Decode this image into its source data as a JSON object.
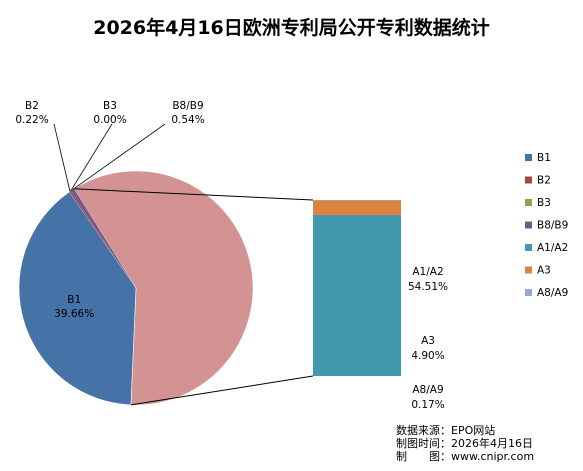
{
  "chart_data": {
    "type": "pie",
    "title": "2026年4月16日欧洲专利局公开专利数据统计",
    "slices": [
      {
        "name": "B1",
        "value": 39.66,
        "label": "39.66%",
        "color": "#4572a7"
      },
      {
        "name": "B2",
        "value": 0.22,
        "label": "0.22%",
        "color": "#aa4643"
      },
      {
        "name": "B3",
        "value": 0.0,
        "label": "0.00%",
        "color": "#89a54e"
      },
      {
        "name": "B8/B9",
        "value": 0.54,
        "label": "0.54%",
        "color": "#71588f"
      }
    ],
    "other_slice": {
      "value": 59.58,
      "color": "#d39393"
    },
    "bar_of_pie": [
      {
        "name": "A1/A2",
        "value": 54.51,
        "label": "54.51%",
        "color": "#4198af"
      },
      {
        "name": "A3",
        "value": 4.9,
        "label": "4.90%",
        "color": "#db843d"
      },
      {
        "name": "A8/A9",
        "value": 0.17,
        "label": "0.17%",
        "color": "#93a9cf"
      }
    ],
    "legend": {
      "position": "right",
      "entries": [
        {
          "name": "B1",
          "color": "#4572a7"
        },
        {
          "name": "B2",
          "color": "#aa4643"
        },
        {
          "name": "B3",
          "color": "#89a54e"
        },
        {
          "name": "B8/B9",
          "color": "#71588f"
        },
        {
          "name": "A1/A2",
          "color": "#4198af"
        },
        {
          "name": "A3",
          "color": "#db843d"
        },
        {
          "name": "A8/A9",
          "color": "#93a9cf"
        }
      ]
    }
  },
  "source": {
    "line1": "数据来源：EPO网站",
    "line2": "制图时间：2026年4月16日",
    "line3": "制　　图：www.cnipr.com"
  }
}
